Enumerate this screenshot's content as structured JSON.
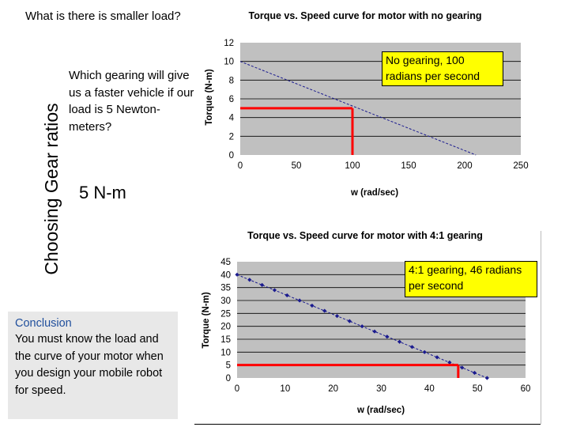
{
  "slide": {
    "top_question": "What is there is smaller load?",
    "vertical_title": "Choosing Gear ratios",
    "gear_question": "Which gearing will give us a faster vehicle if our load is 5 Newton-meters?",
    "answer": "5 N-m",
    "conclusion_title": "Conclusion",
    "conclusion_text": "You must know the load and the curve of your motor when you design your mobile robot for speed."
  },
  "colors": {
    "plot_bg": "#c0c0c0",
    "series": "#1b1b8f",
    "marker": "#ff0000",
    "callout_bg": "#ffff00"
  },
  "chart_data": [
    {
      "type": "line",
      "title": "Torque vs. Speed curve for motor with no gearing",
      "xlabel": "w (rad/sec)",
      "ylabel": "Torque (N-m)",
      "xlim": [
        0,
        250
      ],
      "ylim": [
        0,
        12
      ],
      "xticks": [
        "0",
        "50",
        "100",
        "150",
        "200",
        "250"
      ],
      "yticks": [
        "0",
        "2",
        "4",
        "6",
        "8",
        "10",
        "12"
      ],
      "grid": true,
      "series": [
        {
          "x": [
            0,
            210
          ],
          "y": [
            10,
            0
          ],
          "style": "dashed"
        }
      ],
      "marker_point": {
        "x": 100,
        "y": 5
      },
      "callout": "No gearing, 100 radians per second"
    },
    {
      "type": "line",
      "title": "Torque vs. Speed curve for motor with 4:1 gearing",
      "xlabel": "w (rad/sec)",
      "ylabel": "Torque (N-m)",
      "xlim": [
        0,
        60
      ],
      "ylim": [
        0,
        45
      ],
      "xticks": [
        "0",
        "10",
        "20",
        "30",
        "40",
        "50",
        "60"
      ],
      "yticks": [
        "0",
        "5",
        "10",
        "15",
        "20",
        "25",
        "30",
        "35",
        "40",
        "45"
      ],
      "grid": true,
      "series": [
        {
          "x": [
            0,
            2.6,
            5.2,
            7.8,
            10.4,
            13,
            15.6,
            18.2,
            20.8,
            23.4,
            26,
            28.6,
            31.2,
            33.8,
            36.4,
            39,
            41.6,
            44.2,
            46.8,
            49.4,
            52
          ],
          "y": [
            40,
            38,
            36,
            34,
            32,
            30,
            28,
            26,
            24,
            22,
            20,
            18,
            16,
            14,
            12,
            10,
            8,
            6,
            4,
            2,
            0
          ],
          "style": "dashed-markers"
        }
      ],
      "marker_point": {
        "x": 46,
        "y": 5
      },
      "callout": "4:1 gearing, 46 radians per second"
    }
  ]
}
